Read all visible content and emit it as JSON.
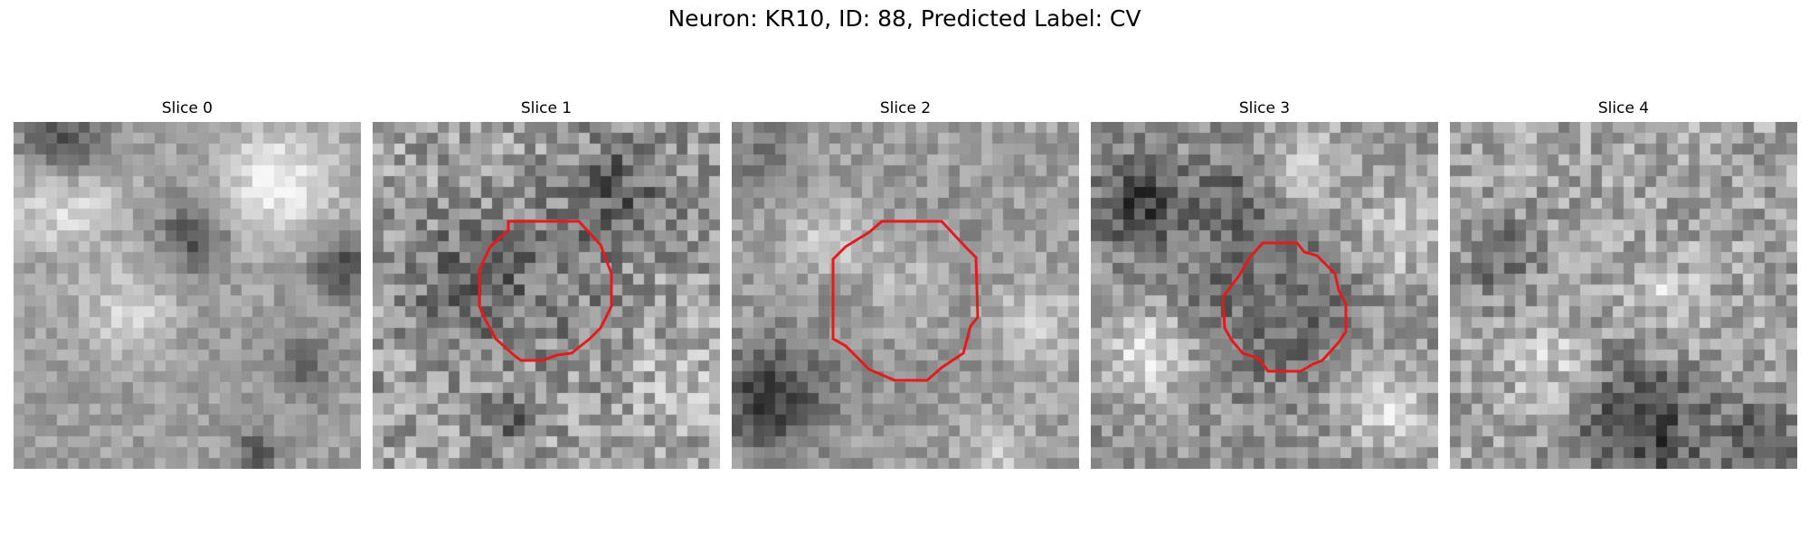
{
  "figure": {
    "title": "Neuron: KR10, ID: 88, Predicted Label: CV"
  },
  "contour_color": "#e41a1c",
  "grid_size": 32,
  "panels": [
    {
      "title": "Slice 0",
      "has_contour": false
    },
    {
      "title": "Slice 1",
      "has_contour": true
    },
    {
      "title": "Slice 2",
      "has_contour": true
    },
    {
      "title": "Slice 3",
      "has_contour": true
    },
    {
      "title": "Slice 4",
      "has_contour": false
    }
  ]
}
